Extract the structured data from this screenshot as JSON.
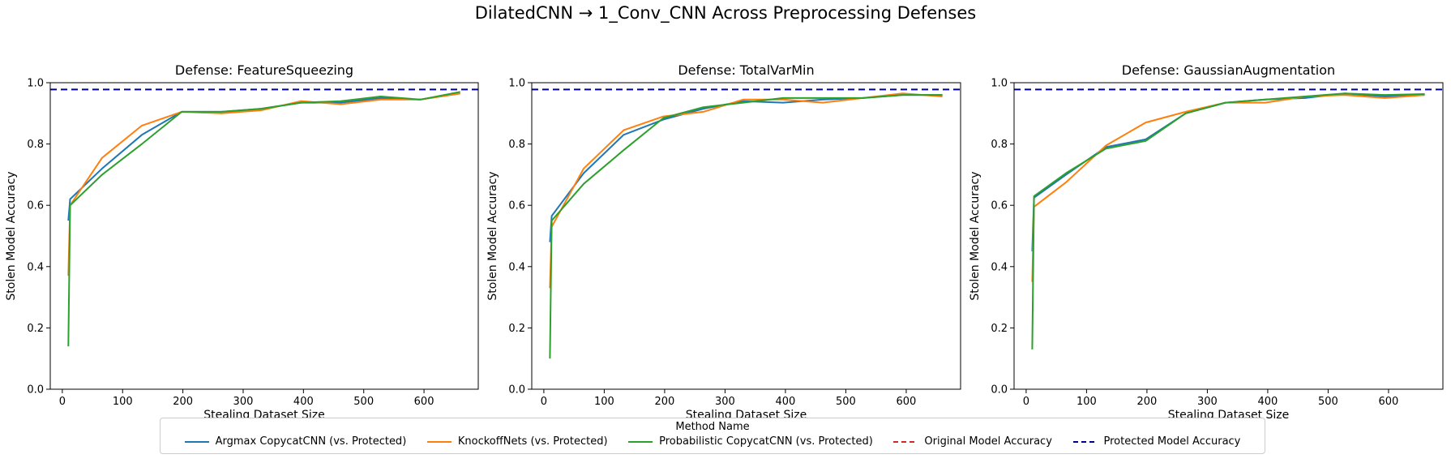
{
  "suptitle": "DilatedCNN → 1_Conv_CNN Across Preprocessing Defenses",
  "legend": {
    "title": "Method Name",
    "entries": [
      {
        "label": "Argmax CopycatCNN (vs. Protected)",
        "color": "#1f77b4",
        "style": "solid"
      },
      {
        "label": "KnockoffNets (vs. Protected)",
        "color": "#ff7f0e",
        "style": "solid"
      },
      {
        "label": "Probabilistic CopycatCNN (vs. Protected)",
        "color": "#2ca02c",
        "style": "solid"
      },
      {
        "label": "Original Model Accuracy",
        "color": "#d62728",
        "style": "dashed"
      },
      {
        "label": "Protected Model Accuracy",
        "color": "#00008b",
        "style": "dashed"
      }
    ]
  },
  "chart_data": [
    {
      "type": "line",
      "title": "Defense: FeatureSqueezing",
      "xlabel": "Stealing Dataset Size",
      "ylabel": "Stolen Model Accuracy",
      "xlim": [
        -20,
        690
      ],
      "ylim": [
        0,
        1.0
      ],
      "xticks": [
        0,
        100,
        200,
        300,
        400,
        500,
        600
      ],
      "yticks": [
        0.0,
        0.2,
        0.4,
        0.6,
        0.8,
        1.0
      ],
      "grid": false,
      "hlines": [
        {
          "name": "Protected Model Accuracy",
          "y": 0.978,
          "color": "#00008b",
          "style": "dashed"
        }
      ],
      "series": [
        {
          "name": "Argmax CopycatCNN (vs. Protected)",
          "color": "#1f77b4",
          "x": [
            10,
            13,
            66,
            132,
            198,
            264,
            330,
            396,
            462,
            528,
            594,
            660
          ],
          "y": [
            0.55,
            0.62,
            0.72,
            0.83,
            0.905,
            0.905,
            0.915,
            0.935,
            0.935,
            0.95,
            0.945,
            0.965
          ]
        },
        {
          "name": "KnockoffNets (vs. Protected)",
          "color": "#ff7f0e",
          "x": [
            10,
            13,
            66,
            132,
            198,
            264,
            330,
            396,
            462,
            528,
            594,
            660
          ],
          "y": [
            0.37,
            0.6,
            0.755,
            0.86,
            0.905,
            0.9,
            0.91,
            0.94,
            0.93,
            0.945,
            0.945,
            0.965
          ]
        },
        {
          "name": "Probabilistic CopycatCNN (vs. Protected)",
          "color": "#2ca02c",
          "x": [
            10,
            13,
            66,
            132,
            198,
            264,
            330,
            396,
            462,
            528,
            594,
            660
          ],
          "y": [
            0.14,
            0.6,
            0.7,
            0.8,
            0.905,
            0.905,
            0.915,
            0.935,
            0.94,
            0.955,
            0.945,
            0.97
          ]
        }
      ]
    },
    {
      "type": "line",
      "title": "Defense: TotalVarMin",
      "xlabel": "Stealing Dataset Size",
      "ylabel": "Stolen Model Accuracy",
      "xlim": [
        -20,
        690
      ],
      "ylim": [
        0,
        1.0
      ],
      "xticks": [
        0,
        100,
        200,
        300,
        400,
        500,
        600
      ],
      "yticks": [
        0.0,
        0.2,
        0.4,
        0.6,
        0.8,
        1.0
      ],
      "grid": false,
      "hlines": [
        {
          "name": "Protected Model Accuracy",
          "y": 0.978,
          "color": "#00008b",
          "style": "dashed"
        }
      ],
      "series": [
        {
          "name": "Argmax CopycatCNN (vs. Protected)",
          "color": "#1f77b4",
          "x": [
            10,
            13,
            66,
            132,
            198,
            264,
            330,
            396,
            462,
            528,
            594,
            660
          ],
          "y": [
            0.48,
            0.565,
            0.705,
            0.83,
            0.88,
            0.915,
            0.94,
            0.935,
            0.945,
            0.95,
            0.96,
            0.96
          ]
        },
        {
          "name": "KnockoffNets (vs. Protected)",
          "color": "#ff7f0e",
          "x": [
            10,
            13,
            66,
            132,
            198,
            264,
            330,
            396,
            462,
            528,
            594,
            660
          ],
          "y": [
            0.33,
            0.53,
            0.72,
            0.845,
            0.89,
            0.905,
            0.945,
            0.945,
            0.935,
            0.95,
            0.965,
            0.955
          ]
        },
        {
          "name": "Probabilistic CopycatCNN (vs. Protected)",
          "color": "#2ca02c",
          "x": [
            10,
            13,
            66,
            132,
            198,
            264,
            330,
            396,
            462,
            528,
            594,
            660
          ],
          "y": [
            0.1,
            0.55,
            0.67,
            0.78,
            0.885,
            0.92,
            0.935,
            0.95,
            0.95,
            0.95,
            0.96,
            0.96
          ]
        }
      ]
    },
    {
      "type": "line",
      "title": "Defense: GaussianAugmentation",
      "xlabel": "Stealing Dataset Size",
      "ylabel": "Stolen Model Accuracy",
      "xlim": [
        -20,
        690
      ],
      "ylim": [
        0,
        1.0
      ],
      "xticks": [
        0,
        100,
        200,
        300,
        400,
        500,
        600
      ],
      "yticks": [
        0.0,
        0.2,
        0.4,
        0.6,
        0.8,
        1.0
      ],
      "grid": false,
      "hlines": [
        {
          "name": "Protected Model Accuracy",
          "y": 0.978,
          "color": "#00008b",
          "style": "dashed"
        }
      ],
      "series": [
        {
          "name": "Argmax CopycatCNN (vs. Protected)",
          "color": "#1f77b4",
          "x": [
            10,
            13,
            66,
            132,
            198,
            264,
            330,
            396,
            462,
            528,
            594,
            660
          ],
          "y": [
            0.45,
            0.625,
            0.7,
            0.79,
            0.815,
            0.9,
            0.935,
            0.945,
            0.95,
            0.965,
            0.955,
            0.96
          ]
        },
        {
          "name": "KnockoffNets (vs. Protected)",
          "color": "#ff7f0e",
          "x": [
            10,
            13,
            66,
            132,
            198,
            264,
            330,
            396,
            462,
            528,
            594,
            660
          ],
          "y": [
            0.35,
            0.595,
            0.675,
            0.795,
            0.87,
            0.905,
            0.935,
            0.935,
            0.955,
            0.96,
            0.95,
            0.96
          ]
        },
        {
          "name": "Probabilistic CopycatCNN (vs. Protected)",
          "color": "#2ca02c",
          "x": [
            10,
            13,
            66,
            132,
            198,
            264,
            330,
            396,
            462,
            528,
            594,
            660
          ],
          "y": [
            0.13,
            0.63,
            0.705,
            0.785,
            0.81,
            0.9,
            0.935,
            0.945,
            0.955,
            0.965,
            0.96,
            0.963
          ]
        }
      ]
    }
  ]
}
